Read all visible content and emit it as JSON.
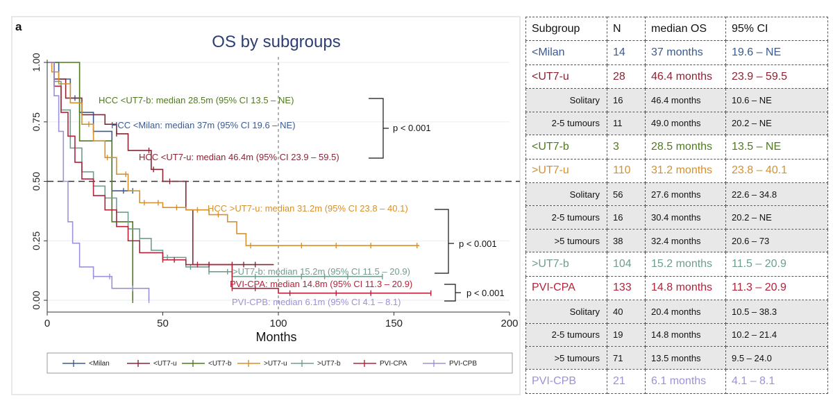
{
  "panel_label": "a",
  "chart_data": {
    "type": "line",
    "title": "OS by subgroups",
    "xlabel": "Months",
    "ylabel": "",
    "xlim": [
      0,
      200
    ],
    "ylim": [
      0,
      1
    ],
    "x_ticks": [
      "0",
      "50",
      "100",
      "150",
      "200"
    ],
    "y_ticks": [
      "0.00",
      "0.25",
      "0.50",
      "0.75",
      "1.00"
    ],
    "median_line": 0.5,
    "ref_x": 100,
    "series": [
      {
        "name": "<Milan",
        "color": "#3b5a8f",
        "x": [
          0,
          5,
          10,
          14,
          20,
          28,
          37
        ],
        "y": [
          1.0,
          0.93,
          0.85,
          0.79,
          0.71,
          0.46,
          0.46
        ],
        "censor_x": [
          12,
          20,
          33,
          37
        ]
      },
      {
        "name": "<UT7-u",
        "color": "#8b2433",
        "x": [
          0,
          3,
          8,
          15,
          25,
          30,
          35,
          45,
          50,
          60,
          63,
          98
        ],
        "y": [
          1.0,
          0.93,
          0.85,
          0.78,
          0.74,
          0.7,
          0.63,
          0.55,
          0.5,
          0.38,
          0.15,
          0.15
        ],
        "censor_x": [
          30,
          44,
          46,
          53,
          70,
          80,
          85,
          90
        ]
      },
      {
        "name": "<UT7-b",
        "color": "#4f7a1f",
        "x": [
          0,
          14,
          28,
          37
        ],
        "y": [
          1.0,
          0.67,
          0.33,
          0.0
        ],
        "censor_x": [
          37
        ]
      },
      {
        "name": ">UT7-u",
        "color": "#d6902c",
        "x": [
          0,
          2,
          5,
          10,
          15,
          20,
          25,
          30,
          35,
          40,
          50,
          60,
          70,
          78,
          82,
          86,
          161
        ],
        "y": [
          1.0,
          0.96,
          0.91,
          0.83,
          0.74,
          0.67,
          0.6,
          0.53,
          0.46,
          0.41,
          0.39,
          0.38,
          0.36,
          0.33,
          0.28,
          0.23,
          0.23
        ],
        "censor_x": [
          18,
          26,
          34,
          42,
          48,
          56,
          65,
          74,
          88,
          110,
          125,
          140,
          160
        ]
      },
      {
        "name": ">UT7-b",
        "color": "#6e9e8d",
        "x": [
          0,
          3,
          6,
          10,
          15,
          20,
          25,
          30,
          35,
          40,
          45,
          50,
          60,
          70,
          80,
          100,
          145
        ],
        "y": [
          1.0,
          0.92,
          0.8,
          0.64,
          0.54,
          0.48,
          0.43,
          0.37,
          0.3,
          0.26,
          0.21,
          0.18,
          0.14,
          0.12,
          0.1,
          0.1,
          0.1
        ],
        "censor_x": [
          40,
          52,
          62,
          70,
          78,
          90,
          110,
          120,
          130,
          145
        ]
      },
      {
        "name": "PVI-CPA",
        "color": "#b2233a",
        "x": [
          0,
          3,
          6,
          9,
          12,
          15,
          20,
          25,
          30,
          35,
          40,
          50,
          60,
          80,
          100,
          166
        ],
        "y": [
          1.0,
          0.9,
          0.79,
          0.69,
          0.58,
          0.51,
          0.44,
          0.38,
          0.31,
          0.25,
          0.2,
          0.17,
          0.15,
          0.05,
          0.03,
          0.03
        ],
        "censor_x": [
          50,
          55,
          65,
          70,
          80,
          90,
          105,
          125,
          140,
          166
        ]
      },
      {
        "name": "PVI-CPB",
        "color": "#9b92d8",
        "x": [
          0,
          3,
          5,
          7,
          9,
          11,
          14,
          20,
          28,
          37,
          44
        ],
        "y": [
          1.0,
          0.86,
          0.71,
          0.5,
          0.33,
          0.24,
          0.14,
          0.1,
          0.05,
          0.05,
          0.0
        ],
        "censor_x": [
          20,
          27,
          37,
          44
        ]
      }
    ],
    "annotations": [
      {
        "text": "HCC <UT7-b: median 28.5m (95% CI 13.5 – NE)",
        "color": "#4f7a1f"
      },
      {
        "text": "HCC <Milan: median 37m (95% CI 19.6 – NE)",
        "color": "#3b5a8f"
      },
      {
        "text": "HCC <UT7-u: median 46.4m (95% CI 23.9 – 59.5)",
        "color": "#8b2433"
      },
      {
        "text": "HCC >UT7-u: median 31.2m (95% CI 23.8 – 40.1)",
        "color": "#d6902c"
      },
      {
        "text": ">UT7-b: median 15.2m (95% CI 11.5 – 20.9)",
        "color": "#6e9e8d"
      },
      {
        "text": "PVI-CPA: median 14.8m (95% CI 11.3 – 20.9)",
        "color": "#b2233a"
      },
      {
        "text": "PVI-CPB: median 6.1m (95% CI 4.1 – 8.1)",
        "color": "#9b92d8"
      },
      {
        "text": "p < 0.001",
        "color": "#111111"
      },
      {
        "text": "p < 0.001",
        "color": "#111111"
      },
      {
        "text": "p < 0.001",
        "color": "#111111"
      }
    ],
    "legend_position": "bottom"
  },
  "table": {
    "headers": [
      "Subgroup",
      "N",
      "median OS",
      "95% CI"
    ],
    "rows": [
      {
        "kind": "main",
        "color": "#3b5a8f",
        "cells": [
          "<Milan",
          "14",
          "37 months",
          "19.6 – NE"
        ]
      },
      {
        "kind": "main",
        "color": "#8b2433",
        "cells": [
          "<UT7-u",
          "28",
          "46.4 months",
          "23.9 – 59.5"
        ]
      },
      {
        "kind": "sub",
        "color": "#111111",
        "cells": [
          "Solitary",
          "16",
          "46.4 months",
          "10.6 –  NE"
        ]
      },
      {
        "kind": "sub",
        "color": "#111111",
        "cells": [
          "2-5 tumours",
          "11",
          "49.0 months",
          "20.2 – NE"
        ]
      },
      {
        "kind": "main",
        "color": "#4f7a1f",
        "cells": [
          "<UT7-b",
          "3",
          "28.5 months",
          "13.5 – NE"
        ]
      },
      {
        "kind": "main",
        "color": "#d6902c",
        "cells": [
          ">UT7-u",
          "110",
          "31.2 months",
          "23.8 – 40.1"
        ]
      },
      {
        "kind": "sub",
        "color": "#111111",
        "cells": [
          "Solitary",
          "56",
          "27.6 months",
          "22.6 – 34.8"
        ]
      },
      {
        "kind": "sub",
        "color": "#111111",
        "cells": [
          "2-5 tumours",
          "16",
          "30.4 months",
          "20.2 – NE"
        ]
      },
      {
        "kind": "sub",
        "color": "#111111",
        "cells": [
          ">5 tumours",
          "38",
          "32.4 months",
          "20.6 – 73"
        ]
      },
      {
        "kind": "main",
        "color": "#6e9e8d",
        "cells": [
          ">UT7-b",
          "104",
          "15.2 months",
          "11.5 – 20.9"
        ]
      },
      {
        "kind": "main",
        "color": "#b2233a",
        "cells": [
          "PVI-CPA",
          "133",
          "14.8 months",
          "11.3 – 20.9"
        ]
      },
      {
        "kind": "sub",
        "color": "#111111",
        "cells": [
          "Solitary",
          "40",
          "20.4 months",
          "10.5 – 38.3"
        ]
      },
      {
        "kind": "sub",
        "color": "#111111",
        "cells": [
          "2-5 tumours",
          "19",
          "14.8 months",
          "10.2 – 21.4"
        ]
      },
      {
        "kind": "sub",
        "color": "#111111",
        "cells": [
          ">5 tumours",
          "71",
          "13.5 months",
          "9.5 – 24.0"
        ]
      },
      {
        "kind": "main",
        "color": "#9b92d8",
        "cells": [
          "PVI-CPB",
          "21",
          "6.1 months",
          "4.1 – 8.1"
        ]
      }
    ]
  }
}
